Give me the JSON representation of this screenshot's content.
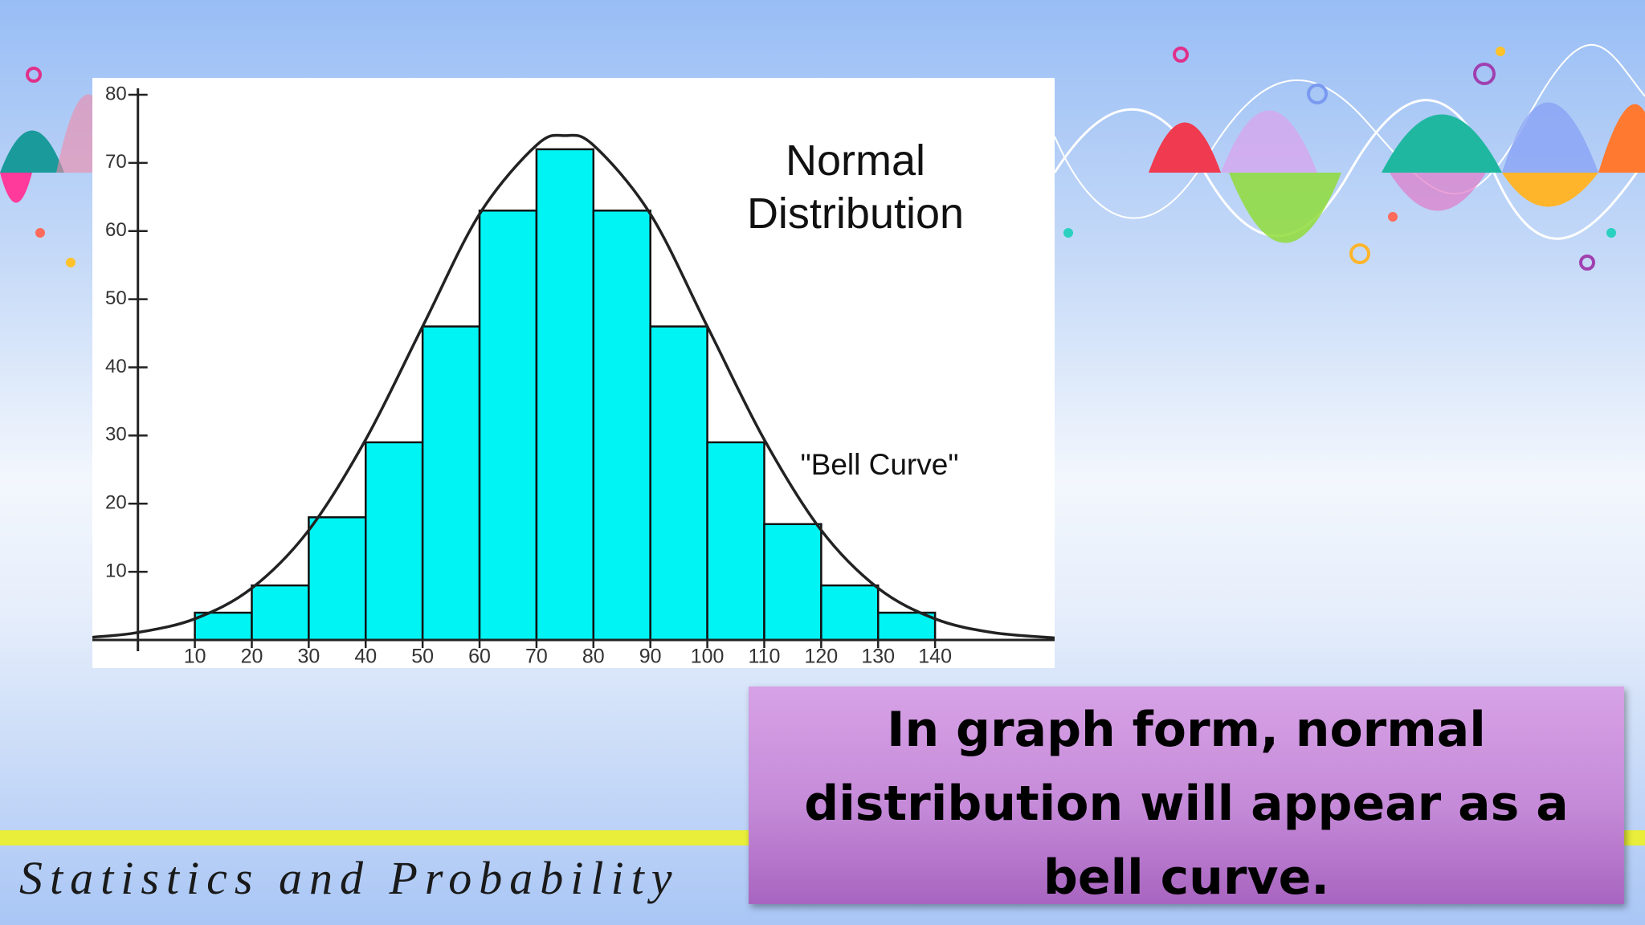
{
  "chart_data": {
    "type": "histogram",
    "title": "Normal Distribution",
    "annotation": "\"Bell Curve\"",
    "bins": [
      10,
      20,
      30,
      40,
      50,
      60,
      70,
      80,
      90,
      100,
      110,
      120,
      130,
      140
    ],
    "counts": [
      4,
      8,
      18,
      29,
      46,
      63,
      72,
      63,
      46,
      29,
      17,
      8,
      4
    ],
    "color": "#00f4f4",
    "curve": {
      "x": [
        -8,
        0,
        10,
        20,
        30,
        40,
        50,
        60,
        70,
        75,
        80,
        90,
        100,
        110,
        120,
        130,
        140,
        150,
        161
      ],
      "y": [
        0.4,
        1.1,
        3.1,
        7.6,
        16.1,
        29.4,
        46,
        62.5,
        72.6,
        74,
        72.6,
        62.5,
        46,
        29.4,
        16.1,
        7.6,
        3.1,
        1.1,
        0.3
      ]
    },
    "xlim": [
      -8,
      161
    ],
    "xticks": [
      10,
      20,
      30,
      40,
      50,
      60,
      70,
      80,
      90,
      100,
      110,
      120,
      130,
      140
    ],
    "ylim": [
      0,
      80
    ],
    "yticks": [
      10,
      20,
      30,
      40,
      50,
      60,
      70,
      80
    ]
  },
  "caption": "In graph form, normal distribution will appear as a bell curve.",
  "footer": "Statistics and Probability"
}
